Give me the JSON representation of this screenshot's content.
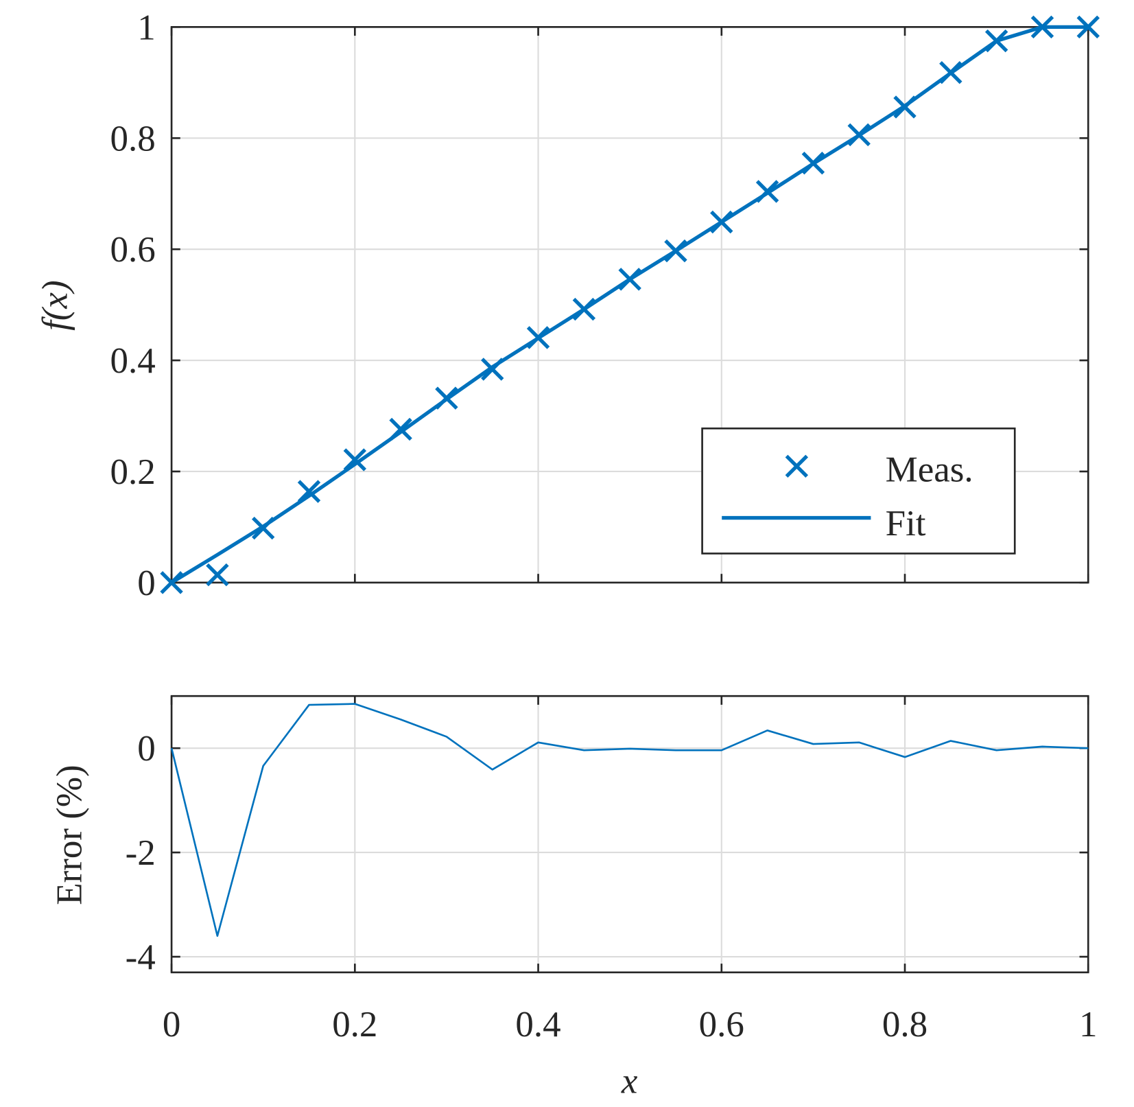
{
  "chart_data": [
    {
      "type": "line",
      "ylabel": "f(x)",
      "xlim": [
        0,
        1
      ],
      "ylim": [
        0,
        1
      ],
      "grid": true,
      "legend_placement": "bottom-right",
      "xticks": [
        "0",
        "0.2",
        "0.4",
        "0.6",
        "0.8",
        "1"
      ],
      "yticks": [
        "0",
        "0.2",
        "0.4",
        "0.6",
        "0.8",
        "1"
      ],
      "x": [
        0,
        0.05,
        0.1,
        0.15,
        0.2,
        0.25,
        0.3,
        0.35,
        0.4,
        0.45,
        0.5,
        0.55,
        0.6,
        0.65,
        0.7,
        0.75,
        0.8,
        0.85,
        0.9,
        0.95,
        1.0
      ],
      "series": [
        {
          "name": "Meas.",
          "style": "markers-x",
          "values": [
            0,
            0.014,
            0.098,
            0.164,
            0.221,
            0.276,
            0.332,
            0.384,
            0.441,
            0.492,
            0.546,
            0.597,
            0.649,
            0.704,
            0.755,
            0.806,
            0.856,
            0.918,
            0.975,
            1.0,
            1.0
          ]
        },
        {
          "name": "Fit",
          "style": "line",
          "values": [
            0,
            0.05,
            0.101,
            0.156,
            0.213,
            0.271,
            0.33,
            0.388,
            0.44,
            0.492,
            0.546,
            0.597,
            0.649,
            0.701,
            0.754,
            0.805,
            0.858,
            0.917,
            0.975,
            1.0,
            1.0
          ]
        }
      ],
      "color": "#0072BD"
    },
    {
      "type": "line",
      "xlabel": "x",
      "ylabel": "Error (%)",
      "xlim": [
        0,
        1
      ],
      "ylim": [
        -4.3,
        1.0
      ],
      "grid": true,
      "xticks": [
        "0",
        "0.2",
        "0.4",
        "0.6",
        "0.8",
        "1"
      ],
      "yticks": [
        "-4",
        "-2",
        "0"
      ],
      "x": [
        0,
        0.05,
        0.1,
        0.15,
        0.2,
        0.25,
        0.3,
        0.35,
        0.4,
        0.45,
        0.5,
        0.55,
        0.6,
        0.65,
        0.7,
        0.75,
        0.8,
        0.85,
        0.9,
        0.95,
        1.0
      ],
      "series": [
        {
          "name": "Error",
          "values": [
            0,
            -3.6,
            -0.34,
            0.83,
            0.85,
            0.55,
            0.22,
            -0.41,
            0.11,
            -0.04,
            -0.01,
            -0.04,
            -0.04,
            0.34,
            0.08,
            0.11,
            -0.17,
            0.14,
            -0.04,
            0.03,
            0
          ]
        }
      ],
      "color": "#0072BD"
    }
  ]
}
